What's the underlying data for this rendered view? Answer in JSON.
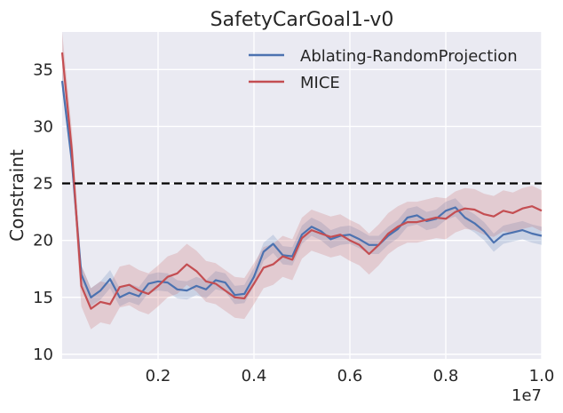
{
  "chart_data": {
    "type": "line",
    "title": "SafetyCarGoal1-v0",
    "xlabel": "",
    "ylabel": "Constraint",
    "x_scale_label": "1e7",
    "xlim": [
      0.0,
      1.0
    ],
    "ylim": [
      9.6,
      38.3
    ],
    "x_ticks": [
      0.2,
      0.4,
      0.6,
      0.8,
      1.0
    ],
    "x_tick_labels": [
      "0.2",
      "0.4",
      "0.6",
      "0.8",
      "1.0"
    ],
    "y_ticks": [
      10,
      15,
      20,
      25,
      30,
      35
    ],
    "y_tick_labels": [
      "10",
      "15",
      "20",
      "25",
      "30",
      "35"
    ],
    "grid": true,
    "legend_position": "top-right",
    "threshold": {
      "value": 25,
      "style": "dashed",
      "color": "#000000"
    },
    "x": [
      0.0,
      0.02,
      0.04,
      0.06,
      0.08,
      0.1,
      0.12,
      0.14,
      0.16,
      0.18,
      0.2,
      0.22,
      0.24,
      0.26,
      0.28,
      0.3,
      0.32,
      0.34,
      0.36,
      0.38,
      0.4,
      0.42,
      0.44,
      0.46,
      0.48,
      0.5,
      0.52,
      0.54,
      0.56,
      0.58,
      0.6,
      0.62,
      0.64,
      0.66,
      0.68,
      0.7,
      0.72,
      0.74,
      0.76,
      0.78,
      0.8,
      0.82,
      0.84,
      0.86,
      0.88,
      0.9,
      0.92,
      0.94,
      0.96,
      0.98,
      1.0
    ],
    "series": [
      {
        "name": "Ablating-RandomProjection",
        "color": "#4c72b0",
        "values": [
          34.0,
          27.0,
          17.0,
          15.0,
          15.6,
          16.6,
          15.0,
          15.4,
          15.1,
          16.2,
          16.4,
          16.3,
          15.7,
          15.6,
          16.0,
          15.7,
          16.5,
          16.3,
          15.2,
          15.3,
          16.8,
          19.0,
          19.7,
          18.7,
          18.6,
          20.5,
          21.2,
          20.8,
          20.1,
          20.4,
          20.5,
          20.1,
          19.6,
          19.6,
          20.4,
          21.0,
          22.0,
          22.2,
          21.7,
          21.9,
          22.6,
          22.9,
          22.0,
          21.5,
          20.8,
          19.8,
          20.5,
          20.7,
          20.9,
          20.6,
          20.4
        ],
        "band": 0.8
      },
      {
        "name": "MICE",
        "color": "#c44e52",
        "values": [
          36.5,
          28.0,
          16.0,
          14.0,
          14.6,
          14.4,
          15.9,
          16.1,
          15.6,
          15.3,
          16.0,
          16.8,
          17.1,
          17.9,
          17.3,
          16.4,
          16.2,
          15.6,
          15.0,
          14.9,
          16.2,
          17.6,
          17.9,
          18.6,
          18.3,
          20.2,
          20.9,
          20.6,
          20.3,
          20.5,
          20.0,
          19.6,
          18.8,
          19.6,
          20.6,
          21.2,
          21.6,
          21.6,
          21.8,
          22.0,
          21.9,
          22.5,
          22.8,
          22.7,
          22.3,
          22.1,
          22.6,
          22.4,
          22.8,
          23.0,
          22.6
        ],
        "band": 1.8
      }
    ]
  }
}
